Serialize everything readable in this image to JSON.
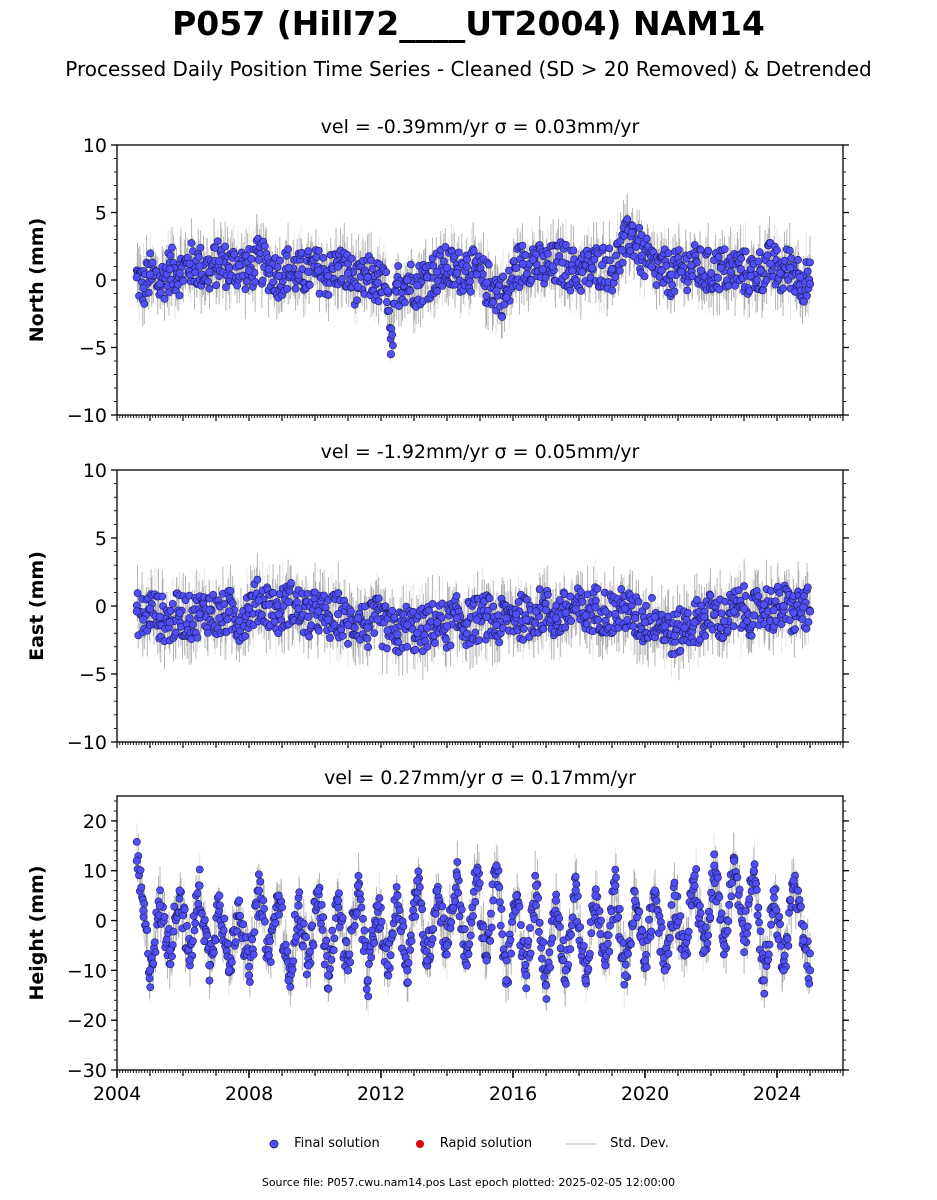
{
  "header": {
    "title": "P057 (Hill72____UT2004) NAM14",
    "subtitle": "Processed Daily Position Time Series - Cleaned (SD > 20 Removed) & Detrended"
  },
  "legend": {
    "final": "Final solution",
    "rapid": "Rapid solution",
    "stddev": "Std. Dev."
  },
  "footer": "Source file: P057.cwu.nam14.pos  Last epoch plotted: 2025-02-05 12:00:00",
  "colors": {
    "final": "#4f4ff5",
    "rapid": "#e00000",
    "stddev": "#d6d6d6"
  },
  "chart_data": [
    {
      "type": "scatter",
      "title": "vel = -0.39mm/yr   σ = 0.03mm/yr",
      "ylabel": "North (mm)",
      "xlim": [
        2004,
        2026
      ],
      "ylim": [
        -10,
        10
      ],
      "yticks": [
        -10,
        -5,
        0,
        5,
        10
      ],
      "ytick_labels": [
        "−10",
        "−5",
        "0",
        "5",
        "10"
      ],
      "series": [
        {
          "name": "Final solution",
          "x": [
            2004.6,
            2004.8,
            2005.0,
            2005.3,
            2005.6,
            2005.9,
            2006.2,
            2006.5,
            2006.8,
            2007.1,
            2007.4,
            2007.7,
            2008.0,
            2008.3,
            2008.6,
            2008.9,
            2009.2,
            2009.5,
            2009.8,
            2010.1,
            2010.4,
            2010.7,
            2011.0,
            2011.3,
            2011.6,
            2011.9,
            2012.2,
            2012.3,
            2012.5,
            2012.8,
            2013.1,
            2013.4,
            2013.7,
            2014.0,
            2014.3,
            2014.6,
            2014.9,
            2015.2,
            2015.5,
            2015.8,
            2016.1,
            2016.3,
            2016.6,
            2016.9,
            2017.2,
            2017.5,
            2017.8,
            2018.1,
            2018.4,
            2018.7,
            2019.0,
            2019.3,
            2019.6,
            2019.9,
            2020.2,
            2020.5,
            2020.8,
            2021.1,
            2021.4,
            2021.7,
            2022.0,
            2022.3,
            2022.6,
            2022.9,
            2023.2,
            2023.5,
            2023.8,
            2024.1,
            2024.4,
            2024.7,
            2025.0
          ],
          "y": [
            0.2,
            -0.6,
            0.4,
            -0.3,
            0.8,
            0.5,
            1.2,
            1.0,
            0.6,
            1.4,
            0.9,
            1.1,
            0.7,
            1.5,
            0.8,
            0.3,
            0.9,
            0.4,
            0.6,
            0.7,
            0.3,
            1.0,
            0.5,
            -0.5,
            0.2,
            -0.2,
            -0.8,
            -5.5,
            -0.3,
            0.0,
            -0.4,
            0.2,
            0.6,
            0.9,
            0.5,
            1.0,
            0.4,
            -0.2,
            -0.8,
            -1.3,
            0.9,
            1.2,
            1.5,
            0.8,
            1.0,
            1.3,
            0.7,
            0.6,
            0.9,
            1.1,
            0.8,
            2.2,
            3.5,
            1.8,
            1.0,
            0.7,
            0.4,
            0.6,
            1.1,
            0.7,
            0.5,
            0.9,
            0.6,
            0.8,
            0.3,
            0.7,
            1.2,
            0.5,
            0.9,
            0.2,
            -0.3
          ]
        },
        {
          "name": "Rapid solution",
          "x": [],
          "y": []
        }
      ]
    },
    {
      "type": "scatter",
      "title": "vel = -1.92mm/yr   σ = 0.05mm/yr",
      "ylabel": "East (mm)",
      "xlim": [
        2004,
        2026
      ],
      "ylim": [
        -10,
        10
      ],
      "yticks": [
        -10,
        -5,
        0,
        5,
        10
      ],
      "ytick_labels": [
        "−10",
        "−5",
        "0",
        "5",
        "10"
      ],
      "series": [
        {
          "name": "Final solution",
          "x": [
            2004.6,
            2004.8,
            2005.0,
            2005.3,
            2005.6,
            2005.9,
            2006.2,
            2006.5,
            2006.8,
            2007.1,
            2007.4,
            2007.7,
            2008.0,
            2008.3,
            2008.6,
            2008.9,
            2009.2,
            2009.5,
            2009.8,
            2010.1,
            2010.4,
            2010.7,
            2011.0,
            2011.3,
            2011.6,
            2011.9,
            2012.2,
            2012.5,
            2012.8,
            2013.1,
            2013.4,
            2013.7,
            2014.0,
            2014.3,
            2014.6,
            2014.9,
            2015.2,
            2015.5,
            2015.8,
            2016.1,
            2016.4,
            2016.7,
            2017.0,
            2017.3,
            2017.6,
            2017.9,
            2018.2,
            2018.5,
            2018.8,
            2019.1,
            2019.4,
            2019.7,
            2020.0,
            2020.3,
            2020.6,
            2020.9,
            2021.2,
            2021.5,
            2021.8,
            2022.1,
            2022.4,
            2022.7,
            2023.0,
            2023.3,
            2023.6,
            2023.9,
            2024.2,
            2024.5,
            2024.8,
            2025.0
          ],
          "y": [
            -0.4,
            -1.0,
            -0.2,
            -0.8,
            -1.2,
            -0.5,
            -0.9,
            -0.6,
            -0.3,
            -0.9,
            -0.4,
            -1.1,
            -0.2,
            0.4,
            0.1,
            -0.6,
            0.3,
            -0.2,
            -0.8,
            -0.4,
            -1.0,
            -0.6,
            -1.4,
            -0.9,
            -1.6,
            -1.0,
            -1.8,
            -2.1,
            -1.4,
            -2.0,
            -1.6,
            -1.2,
            -1.5,
            -0.9,
            -1.3,
            -1.0,
            -0.8,
            -1.4,
            -0.9,
            -0.6,
            -1.0,
            -0.4,
            -0.3,
            -0.9,
            -0.5,
            -0.2,
            -0.7,
            -0.1,
            -0.4,
            -0.6,
            -0.2,
            -0.9,
            -1.2,
            -0.8,
            -1.5,
            -2.2,
            -1.6,
            -1.2,
            -0.8,
            -0.6,
            -1.1,
            -0.4,
            -0.2,
            -0.7,
            0.1,
            -0.3,
            0.0,
            -0.5,
            -0.1,
            -0.4
          ]
        },
        {
          "name": "Rapid solution",
          "x": [],
          "y": []
        }
      ]
    },
    {
      "type": "scatter",
      "title": "vel = 0.27mm/yr   σ = 0.17mm/yr",
      "ylabel": "Height (mm)",
      "xlim": [
        2004,
        2026
      ],
      "ylim": [
        -30,
        25
      ],
      "yticks": [
        -30,
        -20,
        -10,
        0,
        10,
        20
      ],
      "ytick_labels": [
        "−30",
        "−20",
        "−10",
        "0",
        "10",
        "20"
      ],
      "xticks": [
        2004,
        2008,
        2012,
        2016,
        2020,
        2024
      ],
      "xtick_labels": [
        "2004",
        "2008",
        "2012",
        "2016",
        "2020",
        "2024"
      ],
      "series": [
        {
          "name": "Final solution",
          "x": [
            2004.6,
            2004.8,
            2005.0,
            2005.3,
            2005.6,
            2005.9,
            2006.2,
            2006.5,
            2006.8,
            2007.1,
            2007.4,
            2007.7,
            2008.0,
            2008.3,
            2008.6,
            2008.9,
            2009.2,
            2009.5,
            2009.8,
            2010.1,
            2010.4,
            2010.7,
            2011.0,
            2011.3,
            2011.6,
            2011.9,
            2012.2,
            2012.5,
            2012.8,
            2013.1,
            2013.4,
            2013.7,
            2014.0,
            2014.3,
            2014.6,
            2014.9,
            2015.2,
            2015.5,
            2015.8,
            2016.1,
            2016.4,
            2016.7,
            2017.0,
            2017.3,
            2017.6,
            2017.9,
            2018.2,
            2018.5,
            2018.8,
            2019.1,
            2019.4,
            2019.7,
            2020.0,
            2020.3,
            2020.6,
            2020.9,
            2021.2,
            2021.5,
            2021.8,
            2022.1,
            2022.4,
            2022.7,
            2023.0,
            2023.3,
            2023.6,
            2023.9,
            2024.2,
            2024.5,
            2024.8,
            2025.0
          ],
          "y": [
            12,
            2,
            -10,
            3,
            -6,
            6,
            -8,
            7,
            -9,
            5,
            -10,
            4,
            -11,
            6,
            -7,
            5,
            -12,
            3,
            -9,
            6,
            -11,
            4,
            -10,
            7,
            -12,
            3,
            -9,
            5,
            -10,
            8,
            -8,
            6,
            -5,
            9,
            -9,
            10,
            -8,
            11,
            -12,
            5,
            -11,
            7,
            -13,
            4,
            -10,
            6,
            -12,
            5,
            -9,
            7,
            -11,
            4,
            -8,
            6,
            -10,
            5,
            -7,
            9,
            -6,
            11,
            -5,
            12,
            -4,
            10,
            -12,
            6,
            -10,
            8,
            -4,
            -10
          ]
        },
        {
          "name": "Rapid solution",
          "x": [],
          "y": []
        }
      ]
    }
  ]
}
